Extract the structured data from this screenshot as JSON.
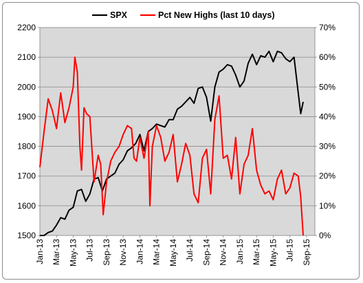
{
  "chart_data": {
    "type": "line",
    "legend_position": "top",
    "grid": "horizontal",
    "plot_background": "#d9d9d9",
    "x_tick_labels": [
      "Jan-13",
      "Mar-13",
      "May-13",
      "Jul-13",
      "Sep-13",
      "Nov-13",
      "Jan-14",
      "Mar-14",
      "May-14",
      "Jul-14",
      "Sep-14",
      "Nov-14",
      "Jan-15",
      "Mar-15",
      "May-15",
      "Jul-15",
      "Sep-15"
    ],
    "y_left": {
      "ylim": [
        1500,
        2200
      ],
      "ticks": [
        "1500",
        "1600",
        "1700",
        "1800",
        "1900",
        "2000",
        "2100",
        "2200"
      ]
    },
    "y_right": {
      "ylim": [
        0,
        70
      ],
      "ticks": [
        "0%",
        "10%",
        "20%",
        "30%",
        "40%",
        "50%",
        "60%",
        "70%"
      ]
    },
    "series": [
      {
        "name": "SPX",
        "color": "#000000",
        "axis": "left",
        "x_months": [
          0,
          0.5,
          1,
          1.5,
          2,
          2.5,
          3,
          3.5,
          4,
          4.5,
          5,
          5.5,
          6,
          6.5,
          7,
          7.5,
          8,
          8.5,
          9,
          9.5,
          10,
          10.5,
          11,
          11.5,
          12,
          12.5,
          13,
          13.5,
          14,
          14.5,
          15,
          15.5,
          16,
          16.5,
          17,
          17.5,
          18,
          18.5,
          19,
          19.5,
          20,
          20.5,
          21,
          21.5,
          22,
          22.5,
          23,
          23.5,
          24,
          24.5,
          25,
          25.5,
          26,
          26.5,
          27,
          27.5,
          28,
          28.5,
          29,
          29.5,
          30,
          30.5,
          31,
          31.3,
          31.6
        ],
        "values": [
          1466,
          1495,
          1510,
          1515,
          1535,
          1560,
          1555,
          1585,
          1595,
          1650,
          1655,
          1615,
          1640,
          1690,
          1695,
          1650,
          1690,
          1700,
          1710,
          1740,
          1755,
          1785,
          1795,
          1810,
          1840,
          1785,
          1850,
          1860,
          1875,
          1870,
          1865,
          1890,
          1890,
          1925,
          1935,
          1950,
          1965,
          1945,
          1995,
          2000,
          1965,
          1885,
          2000,
          2050,
          2060,
          2075,
          2070,
          2040,
          2000,
          2020,
          2080,
          2110,
          2075,
          2105,
          2100,
          2120,
          2085,
          2120,
          2115,
          2095,
          2085,
          2100,
          1980,
          1910,
          1950
        ]
      },
      {
        "name": "Pct New Highs (last 10 days)",
        "color": "#ff0000",
        "axis": "right",
        "x_months": [
          0,
          0.5,
          1,
          1.5,
          2,
          2.5,
          3,
          3.5,
          4,
          4.2,
          4.5,
          4.8,
          5,
          5.3,
          5.6,
          6,
          6.5,
          7,
          7.3,
          7.6,
          8,
          8.5,
          9,
          9.5,
          10,
          10.5,
          11,
          11.3,
          11.6,
          12,
          12.5,
          13,
          13.2,
          13.5,
          14,
          14.5,
          15,
          15.5,
          16,
          16.5,
          17,
          17.5,
          18,
          18.5,
          19,
          19.5,
          20,
          20.5,
          21,
          21.5,
          22,
          22.5,
          23,
          23.5,
          24,
          24.5,
          25,
          25.5,
          26,
          26.5,
          27,
          27.5,
          28,
          28.5,
          29,
          29.5,
          30,
          30.5,
          31,
          31.3,
          31.6
        ],
        "values": [
          23,
          35,
          46,
          42,
          36,
          48,
          38,
          43,
          50,
          60,
          55,
          30,
          22,
          43,
          41,
          40,
          18,
          27,
          24,
          7,
          18,
          25,
          28,
          30,
          34,
          37,
          36,
          26,
          25,
          33,
          26,
          35,
          10,
          30,
          37,
          33,
          25,
          28,
          34,
          18,
          24,
          31,
          27,
          14,
          11,
          26,
          29,
          14,
          39,
          47,
          26,
          27,
          19,
          33,
          14,
          24,
          27,
          36,
          22,
          17,
          14,
          15,
          12,
          19,
          22,
          14,
          16,
          21,
          20,
          13,
          0
        ]
      }
    ]
  }
}
